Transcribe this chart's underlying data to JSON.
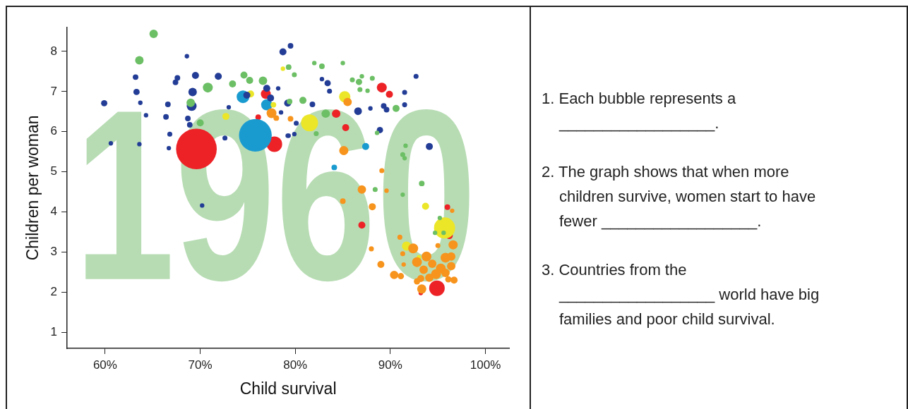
{
  "chart_data": {
    "type": "bubble",
    "xlabel": "Child survival",
    "ylabel": "Children per woman",
    "xlim": [
      56,
      102.5
    ],
    "ylim": [
      0.6,
      8.6
    ],
    "xticks": [
      {
        "value": 60,
        "label": "60%"
      },
      {
        "value": 70,
        "label": "70%"
      },
      {
        "value": 80,
        "label": "80%"
      },
      {
        "value": 90,
        "label": "90%"
      },
      {
        "value": 100,
        "label": "100%"
      }
    ],
    "yticks": [
      1,
      2,
      3,
      4,
      5,
      6,
      7,
      8
    ],
    "grid": false,
    "legend": false,
    "annotations": [
      "1960",
      "1. Each bubble represents a __________________.",
      "2. The graph shows that when more children survive, women start to have fewer __________________.",
      "3. Countries from the __________________ world have big families and poor child survival."
    ],
    "series": [
      {
        "color": "#233d96",
        "x": [
          68.6,
          63.2,
          63.3,
          59.9,
          63.7,
          64.3,
          60.6,
          63.6,
          66.6,
          66.4,
          66.8,
          66.7,
          67.6,
          67.4,
          69.5,
          71.9,
          69.2,
          69.1,
          68.7,
          68.9,
          72.6,
          73.0,
          74.9,
          77.0,
          77.4,
          78.2,
          78.5,
          78.7,
          79.5,
          79.2,
          79.2,
          80.1,
          79.3,
          79.9,
          81.8,
          82.8,
          83.4,
          83.6,
          86.6,
          87.9,
          88.9,
          89.3,
          89.6,
          91.5,
          91.5,
          92.7,
          94.1,
          70.2
        ],
        "values": [
          7.88,
          7.36,
          6.99,
          6.71,
          6.72,
          6.41,
          5.71,
          5.69,
          6.68,
          6.37,
          5.94,
          5.59,
          7.34,
          7.23,
          7.4,
          7.38,
          6.99,
          6.64,
          6.33,
          6.17,
          5.84,
          6.61,
          6.91,
          7.08,
          6.84,
          7.08,
          6.48,
          7.99,
          8.14,
          5.9,
          6.71,
          6.21,
          5.9,
          5.94,
          6.68,
          7.31,
          7.21,
          7.01,
          6.51,
          6.58,
          6.04,
          6.64,
          6.55,
          6.67,
          6.98,
          7.38,
          5.63,
          4.16
        ],
        "sizes": [
          0.012,
          0.019,
          0.024,
          0.024,
          0.012,
          0.012,
          0.012,
          0.012,
          0.019,
          0.019,
          0.015,
          0.012,
          0.019,
          0.019,
          0.03,
          0.03,
          0.043,
          0.059,
          0.019,
          0.019,
          0.015,
          0.012,
          0.03,
          0.03,
          0.03,
          0.012,
          0.012,
          0.03,
          0.019,
          0.012,
          0.03,
          0.015,
          0.012,
          0.012,
          0.019,
          0.012,
          0.024,
          0.015,
          0.036,
          0.012,
          0.024,
          0.019,
          0.019,
          0.015,
          0.015,
          0.015,
          0.03,
          0.012
        ]
      },
      {
        "color": "#f7941d",
        "x": [
          77.5,
          78.0,
          79.5,
          85.5,
          85.1,
          89.1,
          87.0,
          89.6,
          85.0,
          88.1,
          96.5,
          91.0,
          88.0,
          92.4,
          95.0,
          96.6,
          91.3,
          93.8,
          95.8,
          96.4,
          92.8,
          94.4,
          96.4,
          93.5,
          95.3,
          94.8,
          95.8,
          94.1,
          93.2,
          92.8,
          96.1,
          96.7,
          89.0,
          91.4,
          90.4,
          91.1,
          93.3
        ],
        "values": [
          6.46,
          6.34,
          6.32,
          6.74,
          5.53,
          5.03,
          4.56,
          4.53,
          4.27,
          4.13,
          4.03,
          3.37,
          3.08,
          3.09,
          3.16,
          3.18,
          2.96,
          2.89,
          2.86,
          2.89,
          2.75,
          2.71,
          2.65,
          2.56,
          2.59,
          2.45,
          2.48,
          2.36,
          2.34,
          2.27,
          2.32,
          2.3,
          2.69,
          2.69,
          2.43,
          2.4,
          2.08
        ],
        "sizes": [
          0.059,
          0.019,
          0.019,
          0.043,
          0.051,
          0.015,
          0.043,
          0.012,
          0.019,
          0.03,
          0.012,
          0.015,
          0.015,
          0.059,
          0.015,
          0.051,
          0.015,
          0.059,
          0.059,
          0.043,
          0.059,
          0.043,
          0.043,
          0.043,
          0.059,
          0.059,
          0.043,
          0.043,
          0.03,
          0.024,
          0.024,
          0.03,
          0.03,
          0.012,
          0.043,
          0.024,
          0.051
        ]
      },
      {
        "color": "#ebe628",
        "x": [
          72.7,
          75.3,
          77.7,
          78.7,
          81.5,
          85.2,
          93.7,
          95.7,
          91.7,
          93.0
        ],
        "values": [
          6.38,
          6.94,
          6.67,
          7.57,
          6.22,
          6.87,
          4.14,
          3.6,
          3.15,
          2.87
        ],
        "sizes": [
          0.03,
          0.03,
          0.019,
          0.012,
          0.174,
          0.077,
          0.03,
          0.27,
          0.051,
          0.012
        ]
      },
      {
        "color": "#6cbf65",
        "x": [
          65.1,
          63.6,
          70.8,
          69.0,
          70.0,
          73.4,
          74.6,
          75.2,
          76.6,
          79.3,
          79.4,
          79.9,
          82.0,
          82.8,
          85.0,
          80.8,
          82.2,
          83.2,
          86.0,
          86.7,
          87.0,
          88.1,
          86.8,
          87.6,
          90.6,
          88.6,
          91.6,
          91.3,
          91.5,
          88.4,
          93.3,
          91.3,
          95.2,
          94.7,
          95.6
        ],
        "values": [
          8.44,
          7.78,
          7.1,
          6.72,
          6.22,
          7.19,
          7.41,
          7.28,
          7.27,
          7.61,
          6.75,
          7.42,
          7.71,
          7.63,
          7.71,
          6.78,
          5.95,
          6.45,
          7.29,
          7.24,
          7.38,
          7.33,
          7.05,
          7.02,
          6.58,
          5.97,
          5.65,
          5.43,
          5.34,
          4.56,
          4.71,
          4.43,
          3.85,
          3.48,
          3.48
        ],
        "sizes": [
          0.043,
          0.043,
          0.059,
          0.043,
          0.03,
          0.03,
          0.03,
          0.03,
          0.043,
          0.019,
          0.019,
          0.015,
          0.012,
          0.019,
          0.012,
          0.03,
          0.015,
          0.043,
          0.015,
          0.024,
          0.012,
          0.015,
          0.015,
          0.012,
          0.03,
          0.012,
          0.012,
          0.015,
          0.012,
          0.015,
          0.019,
          0.012,
          0.012,
          0.012,
          0.012
        ]
      },
      {
        "color": "#1a9bd0",
        "x": [
          74.5,
          77.0,
          75.8,
          87.4,
          84.1
        ],
        "values": [
          6.87,
          6.67,
          5.91,
          5.63,
          5.11
        ],
        "sizes": [
          0.098,
          0.077,
          0.65,
          0.03,
          0.019
        ]
      },
      {
        "color": "#ec2227",
        "x": [
          69.6,
          76.9,
          76.1,
          77.8,
          84.3,
          85.3,
          89.1,
          89.9,
          87.0,
          96.0,
          96.2,
          94.9,
          93.2
        ],
        "values": [
          5.57,
          6.94,
          6.36,
          5.69,
          6.45,
          6.1,
          7.1,
          6.93,
          3.67,
          4.12,
          3.41,
          2.1,
          1.98
        ],
        "sizes": [
          1,
          0.059,
          0.019,
          0.146,
          0.043,
          0.03,
          0.059,
          0.03,
          0.03,
          0.019,
          0.03,
          0.146,
          0.012
        ]
      }
    ]
  }
}
